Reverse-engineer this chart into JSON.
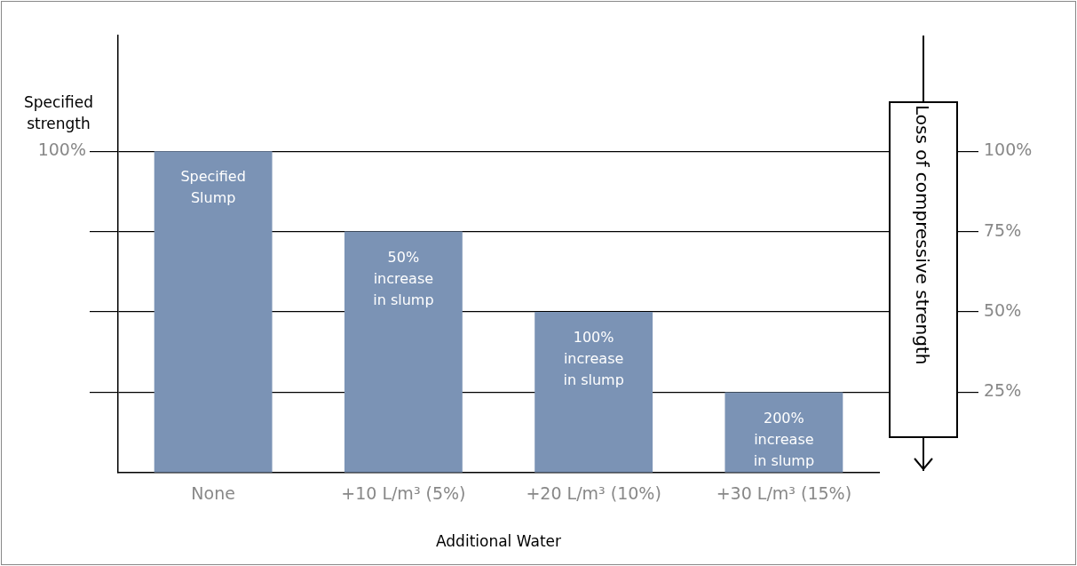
{
  "chart_data": {
    "type": "bar",
    "xlabel": "Additional Water",
    "ylabel": "Specified strength",
    "categories": [
      "None",
      "+10 L/m³ (5%)",
      "+20 L/m³ (10%)",
      "+30 L/m³ (15%)"
    ],
    "values": [
      100,
      75,
      50,
      25
    ],
    "color": "#7b93b5",
    "ylim": [
      0,
      136
    ],
    "yticks": [
      {
        "value": 25,
        "label": null
      },
      {
        "value": 50,
        "label": null
      },
      {
        "value": 75,
        "label": null
      },
      {
        "value": 100,
        "label": "100%"
      }
    ],
    "y2lim": [
      0,
      136
    ],
    "y2ticks": [
      {
        "value": 25,
        "label": "25%"
      },
      {
        "value": 50,
        "label": "50%"
      },
      {
        "value": 75,
        "label": "75%"
      },
      {
        "value": 100,
        "label": "100%"
      }
    ],
    "grid": "y",
    "legend": false,
    "annotations": [
      "Loss of compressive strength",
      {
        "text": "Specified Slump",
        "x": "None",
        "y": 100
      },
      {
        "text": "50% increase in slump",
        "x": "+10 L/m³ (5%)",
        "y": 75
      },
      {
        "text": "100% increase in slump",
        "x": "+20 L/m³ (10%)",
        "y": 50
      },
      {
        "text": "200% increase in slump",
        "x": "+30 L/m³ (15%)",
        "y": 25
      }
    ]
  }
}
